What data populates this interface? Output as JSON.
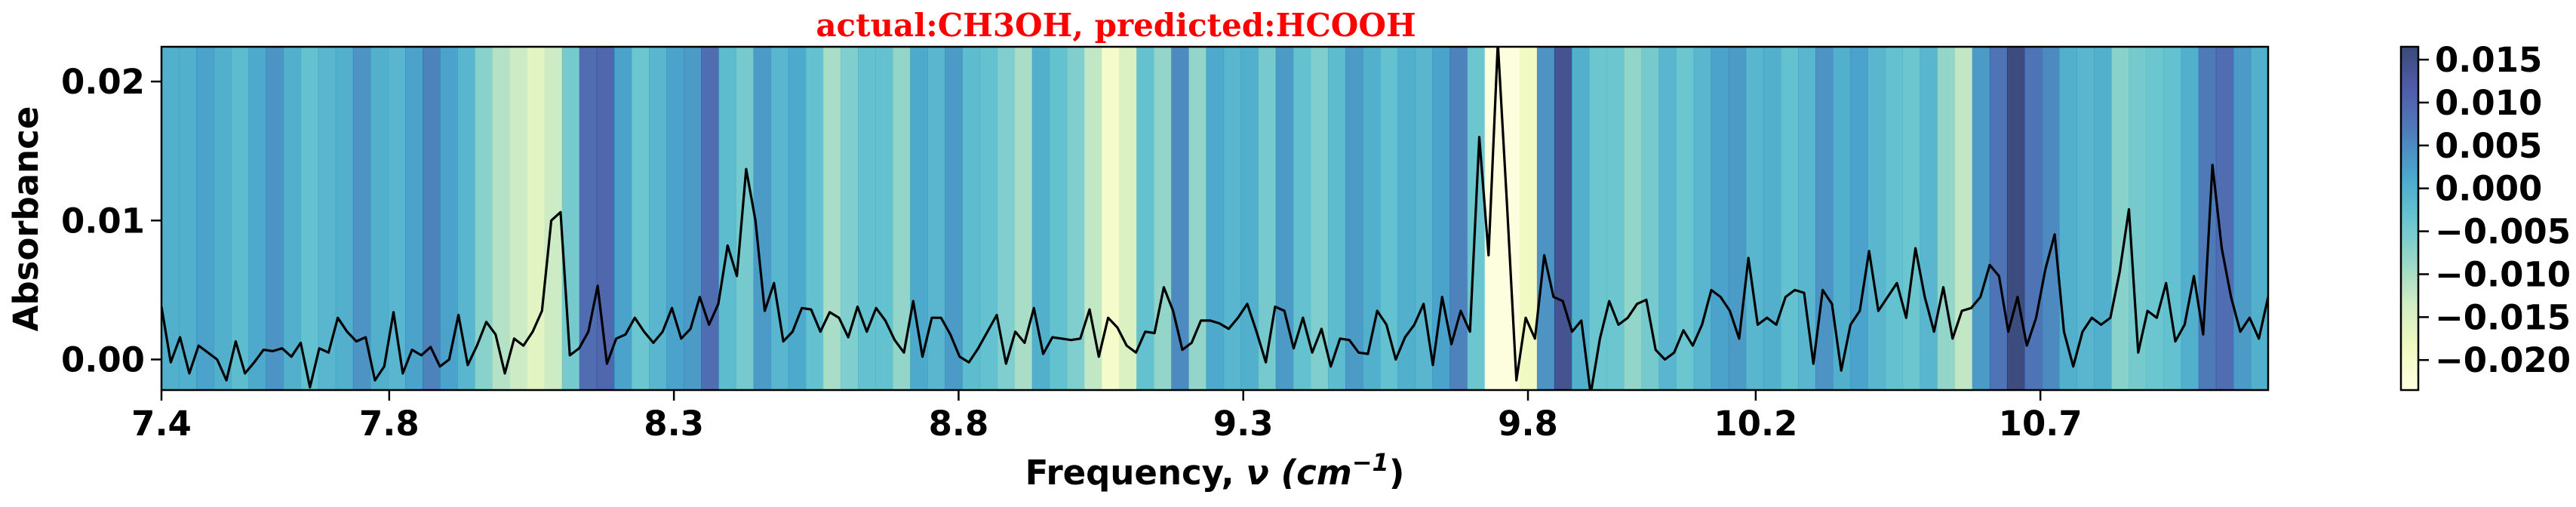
{
  "chart_data": {
    "type": "line",
    "title": "actual:CH3OH, predicted:HCOOH",
    "xlabel": "Frequency, ν (cm⁻¹)",
    "ylabel": "Absorbance",
    "xlim": [
      7.4,
      11.1
    ],
    "ylim": [
      -0.0022,
      0.0225
    ],
    "xticks": [
      "7.4",
      "7.8",
      "8.3",
      "8.8",
      "9.3",
      "9.8",
      "10.2",
      "10.7"
    ],
    "xtick_values": [
      7.4,
      7.8,
      8.3,
      8.8,
      9.3,
      9.8,
      10.2,
      10.7
    ],
    "yticks": [
      "0.00",
      "0.01",
      "0.02"
    ],
    "ytick_values": [
      0.0,
      0.01,
      0.02
    ],
    "series": [
      {
        "color": "#000000",
        "x_start": 7.4,
        "x_end": 11.1,
        "values": [
          0.0038,
          -0.0002,
          0.0016,
          -0.001,
          0.001,
          0.0005,
          0.0,
          -0.0015,
          0.0013,
          -0.001,
          -0.0002,
          0.0007,
          0.0006,
          0.0008,
          0.0002,
          0.0012,
          -0.002,
          0.0008,
          0.0005,
          0.003,
          0.002,
          0.0013,
          0.0016,
          -0.0015,
          -0.0005,
          0.0034,
          -0.001,
          0.0007,
          0.0003,
          0.0009,
          -0.0005,
          0.0,
          0.0032,
          -0.0004,
          0.001,
          0.0027,
          0.0018,
          -0.001,
          0.0015,
          0.001,
          0.002,
          0.0035,
          0.01,
          0.0106,
          0.0003,
          0.0008,
          0.002,
          0.0053,
          -0.0003,
          0.0015,
          0.0018,
          0.003,
          0.002,
          0.0012,
          0.002,
          0.0037,
          0.0015,
          0.0022,
          0.0045,
          0.0025,
          0.004,
          0.0082,
          0.006,
          0.0137,
          0.01,
          0.0035,
          0.0055,
          0.0013,
          0.002,
          0.0037,
          0.0036,
          0.002,
          0.0034,
          0.003,
          0.0016,
          0.0038,
          0.002,
          0.0037,
          0.0028,
          0.0014,
          0.0005,
          0.0042,
          0.0002,
          0.003,
          0.003,
          0.0018,
          0.0002,
          -0.0002,
          0.0008,
          0.002,
          0.0032,
          -0.0003,
          0.002,
          0.0012,
          0.0037,
          0.0004,
          0.0016,
          0.0015,
          0.0014,
          0.0015,
          0.0036,
          0.0002,
          0.003,
          0.0023,
          0.001,
          0.0005,
          0.002,
          0.0019,
          0.0052,
          0.0035,
          0.0007,
          0.0012,
          0.0028,
          0.0028,
          0.0026,
          0.0022,
          0.003,
          0.004,
          0.002,
          -0.0002,
          0.0038,
          0.0035,
          0.0008,
          0.003,
          0.0005,
          0.0022,
          -0.0005,
          0.0015,
          0.0014,
          0.0005,
          0.0004,
          0.0035,
          0.0025,
          0.0,
          0.0016,
          0.0025,
          0.004,
          -0.0004,
          0.0045,
          0.0011,
          0.0035,
          0.002,
          0.016,
          0.0075,
          0.0228,
          0.011,
          -0.0015,
          0.003,
          0.0015,
          0.0075,
          0.0045,
          0.0042,
          0.002,
          0.0028,
          -0.0025,
          0.0015,
          0.0042,
          0.0025,
          0.003,
          0.004,
          0.0043,
          0.0007,
          0.0,
          0.0005,
          0.0021,
          0.001,
          0.0025,
          0.005,
          0.0045,
          0.0035,
          0.0015,
          0.0073,
          0.0025,
          0.003,
          0.0025,
          0.0045,
          0.005,
          0.0048,
          -0.0003,
          0.005,
          0.004,
          -0.0008,
          0.0025,
          0.0035,
          0.0078,
          0.0035,
          0.0045,
          0.0055,
          0.003,
          0.008,
          0.0045,
          0.002,
          0.0052,
          0.0015,
          0.0035,
          0.0037,
          0.0045,
          0.0068,
          0.006,
          0.002,
          0.0045,
          0.001,
          0.003,
          0.0065,
          0.009,
          0.002,
          -0.0005,
          0.002,
          0.003,
          0.0025,
          0.003,
          0.0063,
          0.0108,
          0.0005,
          0.0035,
          0.003,
          0.0055,
          0.0013,
          0.0025,
          0.006,
          0.0018,
          0.014,
          0.008,
          0.0045,
          0.002,
          0.003,
          0.0015,
          0.0045
        ]
      }
    ],
    "heatmap": {
      "vmin": -0.0235,
      "vmax": 0.0165,
      "values": [
        0.0,
        0.0,
        0.002,
        0.0,
        -0.002,
        0.001,
        0.004,
        0.0,
        -0.003,
        -0.001,
        0.0,
        0.004,
        0.0,
        -0.001,
        0.002,
        0.006,
        0.002,
        -0.001,
        -0.007,
        -0.011,
        -0.013,
        -0.016,
        -0.013,
        -0.005,
        0.009,
        0.01,
        0.002,
        -0.004,
        -0.001,
        0.002,
        0.003,
        0.009,
        -0.002,
        -0.005,
        0.003,
        -0.001,
        0.001,
        -0.003,
        -0.01,
        -0.006,
        -0.003,
        -0.003,
        -0.008,
        0.001,
        -0.001,
        0.003,
        -0.002,
        -0.003,
        -0.006,
        -0.01,
        0.0,
        -0.003,
        -0.006,
        -0.012,
        -0.02,
        -0.015,
        -0.003,
        -0.008,
        0.005,
        -0.008,
        0.001,
        -0.001,
        0.0,
        -0.005,
        0.003,
        -0.003,
        -0.006,
        -0.002,
        0.003,
        0.0,
        -0.003,
        0.0,
        -0.001,
        0.002,
        0.006,
        -0.004,
        -0.023,
        -0.023,
        -0.019,
        0.004,
        0.014,
        0.0,
        -0.004,
        -0.004,
        -0.008,
        -0.005,
        -0.001,
        -0.004,
        -0.001,
        0.002,
        0.003,
        -0.001,
        0.0,
        -0.003,
        -0.001,
        0.004,
        0.0,
        0.002,
        -0.001,
        -0.003,
        -0.004,
        -0.001,
        -0.008,
        -0.012,
        0.003,
        0.008,
        0.016,
        0.008,
        0.005,
        0.0,
        -0.001,
        0.0,
        -0.007,
        -0.005,
        -0.004,
        -0.003,
        0.0,
        0.007,
        0.009,
        0.003,
        0.0
      ]
    },
    "colorbar": {
      "ticks": [
        "0.015",
        "0.010",
        "0.005",
        "0.000",
        "−0.005",
        "−0.010",
        "−0.015",
        "−0.020"
      ],
      "tick_values": [
        0.015,
        0.01,
        0.005,
        0.0,
        -0.005,
        -0.01,
        -0.015,
        -0.02
      ],
      "colormap": [
        "#ffffd9",
        "#edf8b1",
        "#c7e9b4",
        "#7fcdbb",
        "#41b6c4",
        "#1d91c0",
        "#225ea8",
        "#253494",
        "#081d58"
      ],
      "alpha": 0.8
    },
    "grid": false,
    "legend": "none"
  }
}
